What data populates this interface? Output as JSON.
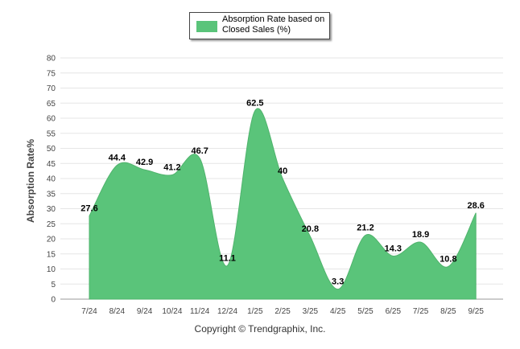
{
  "chart_data": {
    "type": "area",
    "categories": [
      "7/24",
      "8/24",
      "9/24",
      "10/24",
      "11/24",
      "12/24",
      "1/25",
      "2/25",
      "3/25",
      "4/25",
      "5/25",
      "6/25",
      "7/25",
      "8/25",
      "9/25"
    ],
    "series": [
      {
        "name": "Absorption Rate based on Closed Sales (%)",
        "values": [
          27.6,
          44.4,
          42.9,
          41.2,
          46.7,
          11.1,
          62.5,
          40,
          20.8,
          3.3,
          21.2,
          14.3,
          18.9,
          10.8,
          28.6
        ],
        "color": "#5ac47a"
      }
    ],
    "ylabel": "Absorption Rate%",
    "xlabel": "",
    "ylim": [
      0,
      80
    ],
    "yticks": [
      0,
      5,
      10,
      15,
      20,
      25,
      30,
      35,
      40,
      45,
      50,
      55,
      60,
      65,
      70,
      75,
      80
    ],
    "grid": true,
    "legend_position": "top-center",
    "data_labels": [
      "27.6",
      "44.4",
      "42.9",
      "41.2",
      "46.7",
      "11.1",
      "62.5",
      "40",
      "20.8",
      "3.3",
      "21.2",
      "14.3",
      "18.9",
      "10.8",
      "28.6"
    ]
  },
  "legend": {
    "label": "Absorption Rate based on Closed Sales (%)"
  },
  "footer": {
    "copyright": "Copyright © Trendgraphix, Inc."
  }
}
